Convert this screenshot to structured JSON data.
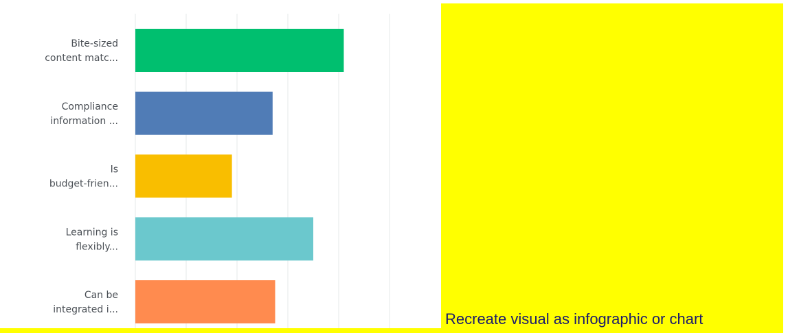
{
  "colors": {
    "panel": "#ffff00",
    "grid": "#e6e8ea",
    "axis_label": "#4a4f55",
    "cta_text": "#1a1a6e"
  },
  "overlay": {
    "cta_text": "Recreate visual as infographic or chart"
  },
  "chart_data": {
    "type": "bar",
    "orientation": "horizontal",
    "categories": [
      [
        "Bite-sized",
        "content matc..."
      ],
      [
        "Compliance",
        "information ..."
      ],
      [
        "Is",
        "budget-frien..."
      ],
      [
        "Learning is",
        "flexibly..."
      ],
      [
        "Can be",
        "integrated i..."
      ]
    ],
    "values": [
      41,
      27,
      19,
      35,
      27.5
    ],
    "colors": [
      "#00bf6f",
      "#507cb6",
      "#f9be00",
      "#6bc8cd",
      "#ff8b4f"
    ],
    "xlim": [
      0,
      60
    ],
    "grid": true
  }
}
